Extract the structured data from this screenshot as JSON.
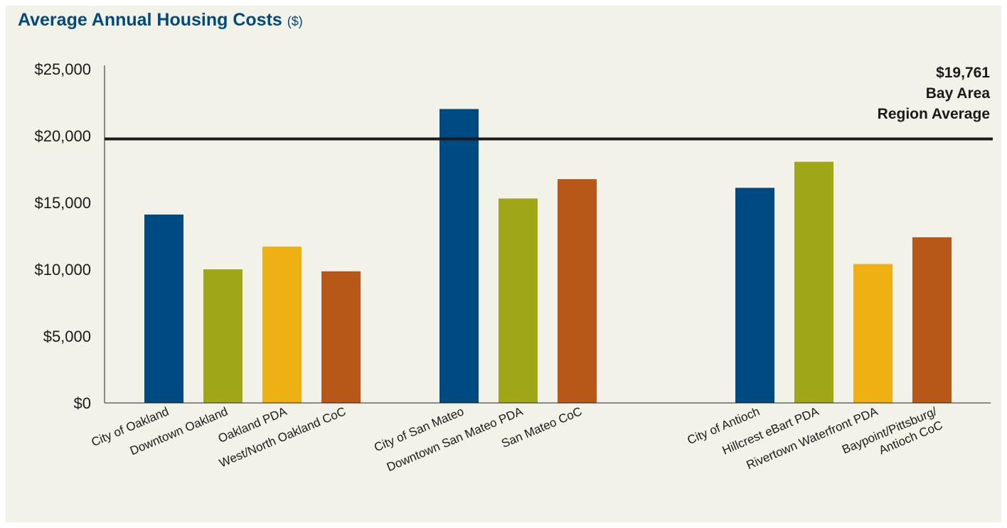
{
  "chart_data": {
    "type": "bar",
    "title": "Average Annual Housing Costs",
    "title_unit": "($)",
    "xlabel": "",
    "ylabel": "",
    "ylim": [
      0,
      25000
    ],
    "y_ticks": [
      {
        "value": 0,
        "label": "$0"
      },
      {
        "value": 5000,
        "label": "$5,000"
      },
      {
        "value": 10000,
        "label": "$10,000"
      },
      {
        "value": 15000,
        "label": "$15,000"
      },
      {
        "value": 20000,
        "label": "$20,000"
      },
      {
        "value": 25000,
        "label": "$25,000"
      }
    ],
    "groups": [
      {
        "bars": [
          {
            "category": [
              "City of Oakland"
            ],
            "value": 14100,
            "color": "#004a82"
          },
          {
            "category": [
              "Downtown Oakland"
            ],
            "value": 10000,
            "color": "#9fa719"
          },
          {
            "category": [
              "Oakland PDA"
            ],
            "value": 11700,
            "color": "#efb013"
          },
          {
            "category": [
              "West/North Oakland CoC"
            ],
            "value": 9850,
            "color": "#b75718"
          }
        ]
      },
      {
        "bars": [
          {
            "category": [
              "City of San Mateo"
            ],
            "value": 22000,
            "color": "#004a82"
          },
          {
            "category": [
              "Downtown San Mateo PDA"
            ],
            "value": 15300,
            "color": "#9fa719"
          },
          {
            "category": [
              "San Mateo CoC"
            ],
            "value": 16750,
            "color": "#b75718"
          }
        ]
      },
      {
        "bars": [
          {
            "category": [
              "City of Antioch"
            ],
            "value": 16100,
            "color": "#004a82"
          },
          {
            "category": [
              "Hillcrest eBart PDA"
            ],
            "value": 18050,
            "color": "#9fa719"
          },
          {
            "category": [
              "Rivertown Waterfront PDA"
            ],
            "value": 10400,
            "color": "#efb013"
          },
          {
            "category": [
              "Baypoint/Pittsburg/",
              "Antioch CoC"
            ],
            "value": 12400,
            "color": "#b75718"
          }
        ]
      }
    ],
    "reference_line": {
      "value": 19761,
      "label_lines": [
        "$19,761",
        "Bay Area",
        "Region Average"
      ]
    },
    "grid": false,
    "legend": "none"
  }
}
